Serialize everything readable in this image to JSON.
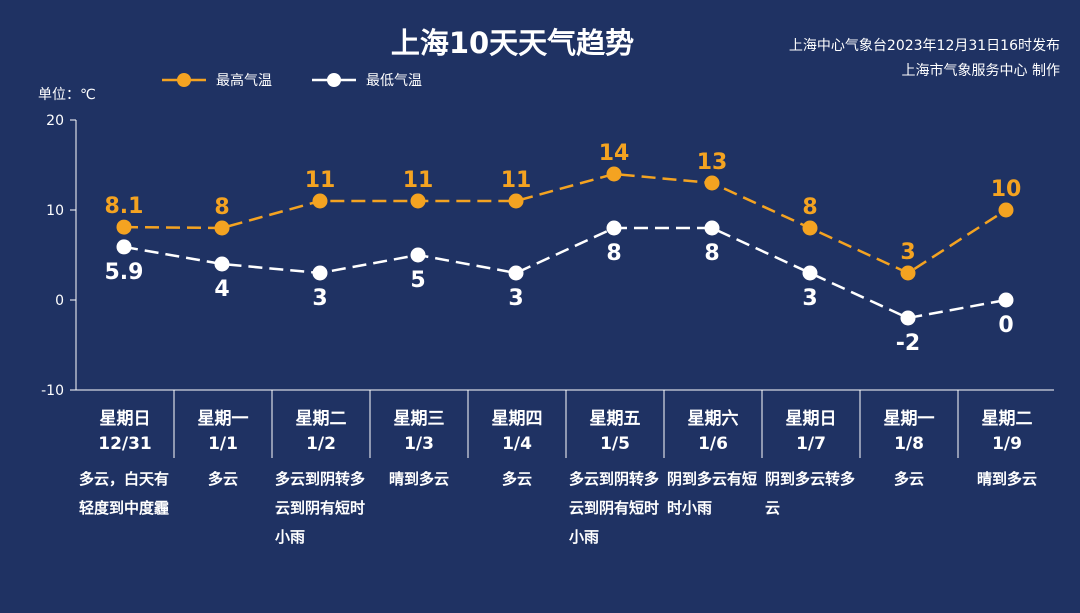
{
  "header": {
    "title": "上海10天天气趋势",
    "source_line1": "上海中心气象台2023年12月31日16时发布",
    "source_line2": "上海市气象服务中心 制作",
    "unit": "单位：℃"
  },
  "colors": {
    "background": "#1f3263",
    "high": "#f4a321",
    "low": "#ffffff",
    "axis": "#ffffff"
  },
  "chart_data": {
    "type": "line",
    "title": "上海10天天气趋势",
    "ylabel": "单位：℃",
    "ylim": [
      -10,
      20
    ],
    "yticks": [
      -10,
      0,
      10,
      20
    ],
    "grid": false,
    "legend_position": "top-left",
    "categories": [
      "星期日",
      "星期一",
      "星期二",
      "星期三",
      "星期四",
      "星期五",
      "星期六",
      "星期日",
      "星期一",
      "星期二"
    ],
    "dates": [
      "12/31",
      "1/1",
      "1/2",
      "1/3",
      "1/4",
      "1/5",
      "1/6",
      "1/7",
      "1/8",
      "1/9"
    ],
    "conditions": [
      "多云，白天有轻度到中度霾",
      "多云",
      "多云到阴转多云到阴有短时小雨",
      "晴到多云",
      "多云",
      "多云到阴转多云到阴有短时小雨",
      "阴到多云有短时小雨",
      "阴到多云转多云",
      "多云",
      "晴到多云"
    ],
    "series": [
      {
        "name": "最高气温",
        "values": [
          8.1,
          8,
          11,
          11,
          11,
          14,
          13,
          8,
          3,
          10
        ]
      },
      {
        "name": "最低气温",
        "values": [
          5.9,
          4,
          3,
          5,
          3,
          8,
          8,
          3,
          -2,
          0
        ]
      }
    ]
  }
}
